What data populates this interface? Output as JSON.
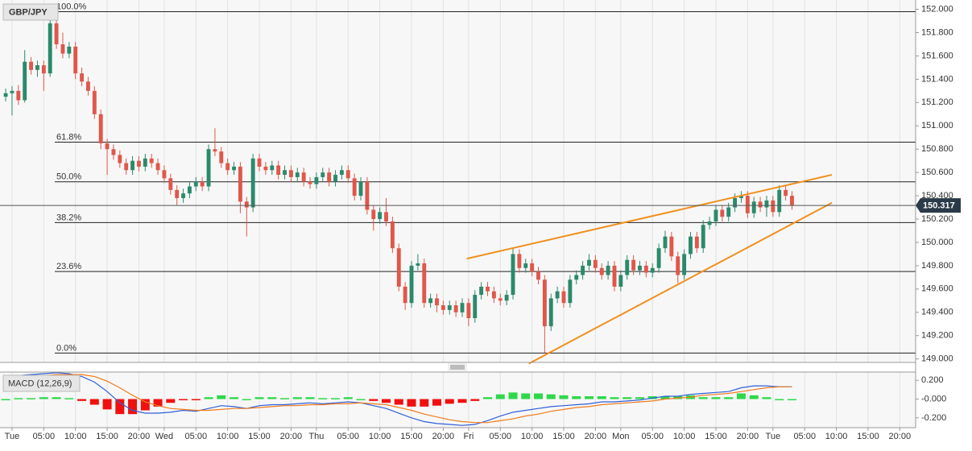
{
  "chart_data": [
    {
      "type": "candlestick",
      "title": "GBP/JPY",
      "x": [
        -1,
        0,
        1,
        2,
        3,
        4,
        5,
        6,
        7,
        8,
        9,
        10,
        11,
        12,
        13,
        14,
        15,
        16,
        17,
        18,
        19,
        20,
        21,
        22,
        23,
        24,
        25,
        26,
        27,
        28,
        29,
        30,
        31,
        32,
        33,
        34,
        35,
        36,
        37,
        38,
        39,
        40,
        41,
        42,
        43,
        44,
        45,
        46,
        47,
        48,
        49,
        50,
        51,
        52,
        53,
        54,
        55,
        56,
        57,
        58,
        59,
        60,
        61,
        62,
        63,
        64,
        65,
        66,
        67,
        68,
        69,
        70,
        71,
        72,
        73,
        74,
        75,
        76,
        77,
        78,
        79,
        80,
        81,
        82,
        83,
        84,
        85,
        86,
        87,
        88,
        89,
        90,
        91,
        92,
        93,
        94,
        95,
        96,
        97,
        98,
        99,
        100,
        101,
        102,
        103,
        104,
        105,
        106,
        107,
        108,
        109,
        110,
        111,
        112,
        113,
        114,
        115,
        116,
        117,
        118,
        119,
        120,
        121,
        122,
        123
      ],
      "open": [
        151.25,
        151.28,
        151.3,
        151.22,
        151.55,
        151.48,
        151.52,
        151.45,
        151.88,
        151.7,
        151.62,
        151.68,
        151.45,
        151.38,
        151.3,
        151.1,
        150.85,
        150.8,
        150.75,
        150.68,
        150.62,
        150.7,
        150.65,
        150.72,
        150.68,
        150.62,
        150.55,
        150.45,
        150.38,
        150.42,
        150.48,
        150.52,
        150.48,
        150.8,
        150.78,
        150.68,
        150.62,
        150.65,
        150.35,
        150.3,
        150.72,
        150.65,
        150.62,
        150.66,
        150.58,
        150.62,
        150.56,
        150.6,
        150.52,
        150.5,
        150.56,
        150.6,
        150.52,
        150.58,
        150.62,
        150.55,
        150.4,
        150.52,
        150.28,
        150.2,
        150.26,
        150.18,
        149.95,
        149.62,
        149.48,
        149.8,
        149.82,
        149.48,
        149.52,
        149.46,
        149.42,
        149.46,
        149.4,
        149.48,
        149.35,
        149.55,
        149.62,
        149.58,
        149.52,
        149.5,
        149.55,
        149.9,
        149.78,
        149.82,
        149.75,
        149.68,
        149.28,
        149.52,
        149.58,
        149.48,
        149.68,
        149.72,
        149.8,
        149.85,
        149.78,
        149.72,
        149.8,
        149.62,
        149.72,
        149.85,
        149.76,
        149.8,
        149.74,
        149.78,
        149.95,
        150.05,
        149.88,
        149.72,
        149.9,
        150.05,
        149.95,
        150.15,
        150.18,
        150.28,
        150.22,
        150.3,
        150.38,
        150.4,
        150.25,
        150.35,
        150.3,
        150.36,
        150.26,
        150.45,
        150.4
      ],
      "high": [
        151.32,
        151.34,
        151.35,
        151.65,
        151.59,
        151.56,
        151.56,
        151.95,
        152.0,
        151.8,
        151.72,
        151.72,
        151.5,
        151.42,
        151.34,
        151.14,
        150.89,
        150.84,
        150.79,
        150.72,
        150.74,
        150.74,
        150.76,
        150.76,
        150.72,
        150.66,
        150.59,
        150.49,
        150.46,
        150.52,
        150.56,
        150.56,
        150.84,
        150.98,
        150.82,
        150.72,
        150.69,
        150.69,
        150.39,
        150.76,
        150.76,
        150.69,
        150.7,
        150.7,
        150.66,
        150.66,
        150.64,
        150.64,
        150.56,
        150.6,
        150.64,
        150.64,
        150.62,
        150.66,
        150.66,
        150.59,
        150.56,
        150.56,
        150.32,
        150.3,
        150.38,
        150.22,
        149.99,
        149.66,
        149.84,
        149.9,
        149.86,
        149.56,
        149.56,
        149.5,
        149.5,
        149.5,
        149.52,
        149.52,
        149.59,
        149.66,
        149.66,
        149.62,
        149.56,
        149.59,
        149.95,
        149.94,
        149.86,
        149.86,
        149.79,
        149.72,
        149.56,
        149.62,
        149.62,
        149.72,
        149.76,
        149.84,
        149.9,
        149.89,
        149.82,
        149.84,
        149.84,
        149.76,
        149.89,
        149.89,
        149.84,
        149.84,
        149.82,
        149.99,
        150.1,
        150.09,
        149.92,
        149.94,
        150.09,
        150.09,
        150.19,
        150.22,
        150.32,
        150.32,
        150.34,
        150.42,
        150.44,
        150.44,
        150.39,
        150.39,
        150.4,
        150.4,
        150.49,
        150.49,
        150.44
      ],
      "low": [
        151.21,
        151.09,
        151.18,
        151.2,
        151.44,
        151.42,
        151.3,
        151.42,
        151.66,
        151.58,
        151.58,
        151.4,
        151.34,
        151.26,
        151.06,
        150.8,
        150.58,
        150.71,
        150.64,
        150.58,
        150.58,
        150.61,
        150.61,
        150.64,
        150.58,
        150.51,
        150.41,
        150.32,
        150.34,
        150.38,
        150.44,
        150.44,
        150.44,
        150.74,
        150.64,
        150.58,
        150.58,
        150.25,
        150.05,
        150.26,
        150.61,
        150.58,
        150.58,
        150.54,
        150.54,
        150.52,
        150.52,
        150.48,
        150.46,
        150.46,
        150.52,
        150.48,
        150.48,
        150.54,
        150.51,
        150.36,
        150.36,
        150.24,
        150.1,
        150.16,
        150.14,
        149.91,
        149.58,
        149.42,
        149.44,
        149.76,
        149.44,
        149.44,
        149.4,
        149.38,
        149.38,
        149.36,
        149.36,
        149.28,
        149.31,
        149.51,
        149.54,
        149.48,
        149.46,
        149.46,
        149.51,
        149.74,
        149.74,
        149.71,
        149.64,
        149.05,
        149.24,
        149.48,
        149.44,
        149.44,
        149.64,
        149.68,
        149.76,
        149.74,
        149.68,
        149.68,
        149.58,
        149.58,
        149.68,
        149.72,
        149.72,
        149.7,
        149.7,
        149.74,
        149.91,
        149.84,
        149.65,
        149.68,
        149.86,
        149.91,
        149.91,
        150.11,
        150.14,
        150.18,
        150.18,
        150.26,
        150.34,
        150.21,
        150.21,
        150.26,
        150.22,
        150.22,
        150.22,
        150.36,
        150.28
      ],
      "close": [
        151.28,
        151.3,
        151.22,
        151.55,
        151.48,
        151.52,
        151.45,
        151.88,
        151.7,
        151.62,
        151.68,
        151.45,
        151.38,
        151.3,
        151.1,
        150.85,
        150.8,
        150.75,
        150.68,
        150.62,
        150.7,
        150.65,
        150.72,
        150.68,
        150.62,
        150.55,
        150.45,
        150.38,
        150.42,
        150.48,
        150.52,
        150.48,
        150.8,
        150.78,
        150.68,
        150.62,
        150.65,
        150.35,
        150.3,
        150.72,
        150.65,
        150.62,
        150.66,
        150.58,
        150.62,
        150.56,
        150.6,
        150.52,
        150.5,
        150.56,
        150.6,
        150.52,
        150.58,
        150.62,
        150.55,
        150.4,
        150.52,
        150.28,
        150.2,
        150.26,
        150.18,
        149.95,
        149.62,
        149.48,
        149.8,
        149.82,
        149.48,
        149.52,
        149.46,
        149.42,
        149.46,
        149.4,
        149.48,
        149.35,
        149.55,
        149.62,
        149.58,
        149.52,
        149.5,
        149.55,
        149.9,
        149.78,
        149.82,
        149.75,
        149.68,
        149.28,
        149.52,
        149.58,
        149.48,
        149.68,
        149.72,
        149.8,
        149.85,
        149.78,
        149.72,
        149.8,
        149.62,
        149.72,
        149.85,
        149.76,
        149.8,
        149.74,
        149.78,
        149.95,
        150.05,
        149.88,
        149.72,
        149.9,
        150.05,
        149.95,
        150.15,
        150.18,
        150.28,
        150.22,
        150.3,
        150.38,
        150.4,
        150.25,
        150.35,
        150.3,
        150.36,
        150.26,
        150.45,
        150.4,
        150.32
      ],
      "up_color": "#2a8a6c",
      "down_color": "#e0574b",
      "xlim": [
        -1.9,
        142.5
      ],
      "ylim": [
        148.97,
        152.08
      ],
      "yticks": [
        {
          "value": 152.0,
          "label": "152.000"
        },
        {
          "value": 151.8,
          "label": "151.800"
        },
        {
          "value": 151.6,
          "label": "151.600"
        },
        {
          "value": 151.4,
          "label": "151.400"
        },
        {
          "value": 151.2,
          "label": "151.200"
        },
        {
          "value": 151.0,
          "label": "151.000"
        },
        {
          "value": 150.8,
          "label": "150.800"
        },
        {
          "value": 150.6,
          "label": "150.600"
        },
        {
          "value": 150.4,
          "label": "150.400"
        },
        {
          "value": 150.2,
          "label": "150.200"
        },
        {
          "value": 150.0,
          "label": "150.000"
        },
        {
          "value": 149.8,
          "label": "149.800"
        },
        {
          "value": 149.6,
          "label": "149.600"
        },
        {
          "value": 149.4,
          "label": "149.400"
        },
        {
          "value": 149.2,
          "label": "149.200"
        },
        {
          "value": 149.0,
          "label": "149.000"
        }
      ],
      "fib_levels": [
        {
          "label": "100.0%",
          "price": 151.98
        },
        {
          "label": "61.8%",
          "price": 150.86
        },
        {
          "label": "50.0%",
          "price": 150.52
        },
        {
          "label": "38.2%",
          "price": 150.17
        },
        {
          "label": "23.6%",
          "price": 149.75
        },
        {
          "label": "0.0%",
          "price": 149.05
        }
      ],
      "trendlines": [
        {
          "x": [
            71.7,
            129.3
          ],
          "y": [
            149.86,
            150.58
          ],
          "color": "#f0901e"
        },
        {
          "x": [
            81.5,
            129.3
          ],
          "y": [
            148.96,
            150.34
          ],
          "color": "#f0901e"
        }
      ],
      "last_price": 150.317
    },
    {
      "type": "macd",
      "title": "MACD (12,26,9)",
      "x": [
        -1,
        1,
        3,
        5,
        7,
        9,
        11,
        13,
        15,
        17,
        19,
        21,
        23,
        25,
        27,
        29,
        31,
        33,
        35,
        37,
        39,
        41,
        43,
        45,
        47,
        49,
        51,
        53,
        55,
        57,
        59,
        61,
        63,
        65,
        67,
        69,
        71,
        73,
        75,
        77,
        79,
        81,
        83,
        85,
        87,
        89,
        91,
        93,
        95,
        97,
        99,
        101,
        103,
        105,
        107,
        109,
        111,
        113,
        115,
        117,
        119,
        121,
        123
      ],
      "series": [
        {
          "color": "#2f5fd8",
          "values": [
            0.24,
            0.25,
            0.26,
            0.27,
            0.28,
            0.27,
            0.24,
            0.18,
            0.08,
            -0.04,
            -0.12,
            -0.15,
            -0.15,
            -0.14,
            -0.12,
            -0.13,
            -0.1,
            -0.07,
            -0.08,
            -0.1,
            -0.07,
            -0.06,
            -0.06,
            -0.05,
            -0.04,
            -0.05,
            -0.04,
            -0.03,
            -0.04,
            -0.07,
            -0.1,
            -0.15,
            -0.2,
            -0.24,
            -0.26,
            -0.27,
            -0.28,
            -0.27,
            -0.23,
            -0.18,
            -0.14,
            -0.12,
            -0.1,
            -0.08,
            -0.07,
            -0.06,
            -0.05,
            -0.03,
            -0.03,
            -0.02,
            -0.01,
            0.01,
            0.03,
            0.03,
            0.05,
            0.06,
            0.07,
            0.08,
            0.12,
            0.14,
            0.14,
            0.13,
            0.13
          ]
        },
        {
          "color": "#f07b1d",
          "values": [
            0.24,
            0.24,
            0.25,
            0.25,
            0.26,
            0.26,
            0.26,
            0.24,
            0.19,
            0.12,
            0.04,
            -0.03,
            -0.07,
            -0.1,
            -0.11,
            -0.12,
            -0.12,
            -0.11,
            -0.1,
            -0.1,
            -0.09,
            -0.08,
            -0.07,
            -0.07,
            -0.06,
            -0.06,
            -0.05,
            -0.05,
            -0.04,
            -0.05,
            -0.06,
            -0.09,
            -0.12,
            -0.16,
            -0.19,
            -0.22,
            -0.24,
            -0.25,
            -0.25,
            -0.23,
            -0.21,
            -0.18,
            -0.16,
            -0.13,
            -0.11,
            -0.09,
            -0.08,
            -0.06,
            -0.05,
            -0.04,
            -0.03,
            -0.02,
            0.0,
            0.01,
            0.02,
            0.04,
            0.05,
            0.06,
            0.08,
            0.1,
            0.12,
            0.13,
            0.13
          ]
        }
      ],
      "histogram": [
        0,
        0.01,
        0.01,
        0.02,
        0.02,
        0.01,
        -0.02,
        -0.06,
        -0.11,
        -0.16,
        -0.16,
        -0.12,
        -0.08,
        -0.04,
        -0.01,
        -0.01,
        0.02,
        0.04,
        0.02,
        0,
        0.02,
        0.02,
        0.01,
        0.02,
        0.02,
        0.01,
        0.01,
        0.02,
        0,
        -0.02,
        -0.04,
        -0.06,
        -0.08,
        -0.08,
        -0.07,
        -0.05,
        -0.04,
        -0.02,
        0.02,
        0.05,
        0.07,
        0.06,
        0.06,
        0.05,
        0.04,
        0.03,
        0.03,
        0.03,
        0.02,
        0.02,
        0.02,
        0.03,
        0.03,
        0.03,
        0.04,
        0.02,
        0.02,
        0.02,
        0.06,
        0.04,
        0.02,
        0,
        0
      ],
      "up_color": "#2fd84a",
      "down_color": "#f01010",
      "xlim": [
        -1.9,
        142.5
      ],
      "ylim": [
        -0.304,
        0.287
      ],
      "yticks": [
        {
          "value": 0.2,
          "label": "0.200"
        },
        {
          "value": 0,
          "label": "-0.000"
        },
        {
          "value": -0.2,
          "label": "-0.200"
        }
      ],
      "xticks": [
        {
          "value": 0,
          "label": "Tue"
        },
        {
          "value": 5,
          "label": "05:00"
        },
        {
          "value": 10,
          "label": "10:00"
        },
        {
          "value": 15,
          "label": "15:00"
        },
        {
          "value": 20,
          "label": "20:00"
        },
        {
          "value": 24,
          "label": "Wed"
        },
        {
          "value": 29,
          "label": "05:00"
        },
        {
          "value": 34,
          "label": "10:00"
        },
        {
          "value": 39,
          "label": "15:00"
        },
        {
          "value": 44,
          "label": "20:00"
        },
        {
          "value": 48,
          "label": "Thu"
        },
        {
          "value": 53,
          "label": "05:00"
        },
        {
          "value": 58,
          "label": "10:00"
        },
        {
          "value": 63,
          "label": "15:00"
        },
        {
          "value": 68,
          "label": "20:00"
        },
        {
          "value": 72,
          "label": "Fri"
        },
        {
          "value": 77,
          "label": "05:00"
        },
        {
          "value": 82,
          "label": "10:00"
        },
        {
          "value": 87,
          "label": "15:00"
        },
        {
          "value": 92,
          "label": "20:00"
        },
        {
          "value": 96,
          "label": "Mon"
        },
        {
          "value": 101,
          "label": "05:00"
        },
        {
          "value": 106,
          "label": "10:00"
        },
        {
          "value": 111,
          "label": "15:00"
        },
        {
          "value": 116,
          "label": "20:00"
        },
        {
          "value": 120,
          "label": "Tue"
        },
        {
          "value": 125,
          "label": "05:00"
        },
        {
          "value": 130,
          "label": "10:00"
        },
        {
          "value": 135,
          "label": "15:00"
        },
        {
          "value": 140,
          "label": "20:00"
        }
      ]
    }
  ]
}
